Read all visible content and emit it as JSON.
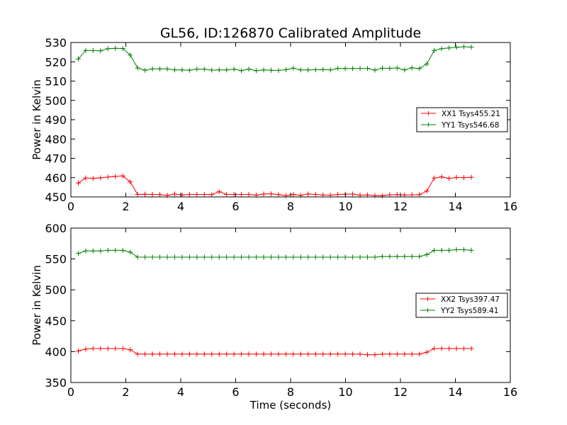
{
  "title": "GL56, ID:126870 Calibrated Amplitude",
  "chart_data": [
    {
      "type": "line",
      "title": "GL56, ID:126870 Calibrated Amplitude",
      "xlabel": "",
      "ylabel": "Power in Kelvin",
      "xlim": [
        0,
        16
      ],
      "ylim": [
        450,
        530
      ],
      "xticks": [
        0,
        2,
        4,
        6,
        8,
        10,
        12,
        14,
        16
      ],
      "yticks": [
        450,
        460,
        470,
        480,
        490,
        500,
        510,
        520,
        530
      ],
      "xtick_labels": [
        "0",
        "2",
        "4",
        "6",
        "8",
        "10",
        "12",
        "14",
        "16"
      ],
      "ytick_labels": [
        "450",
        "460",
        "470",
        "480",
        "490",
        "500",
        "510",
        "520",
        "530"
      ],
      "grid": false,
      "legend_position": "center-right",
      "x": [
        0.27,
        0.54,
        0.81,
        1.08,
        1.35,
        1.62,
        1.89,
        2.16,
        2.43,
        2.7,
        2.97,
        3.24,
        3.51,
        3.78,
        4.05,
        4.32,
        4.59,
        4.86,
        5.13,
        5.4,
        5.67,
        5.94,
        6.21,
        6.48,
        6.75,
        7.02,
        7.29,
        7.56,
        7.83,
        8.1,
        8.37,
        8.64,
        8.91,
        9.18,
        9.45,
        9.72,
        9.99,
        10.26,
        10.53,
        10.8,
        11.07,
        11.34,
        11.61,
        11.88,
        12.15,
        12.42,
        12.69,
        12.96,
        13.23,
        13.5,
        13.77,
        14.04,
        14.31,
        14.58
      ],
      "series": [
        {
          "name": "XX1 Tsys455.21",
          "color": "#ff0000",
          "values": [
            457.2,
            459.8,
            459.6,
            459.9,
            460.3,
            460.6,
            460.9,
            457.8,
            451.3,
            451.4,
            451.3,
            451.2,
            450.8,
            451.5,
            451.0,
            451.3,
            451.3,
            451.3,
            451.2,
            452.7,
            451.3,
            451.3,
            451.3,
            451.3,
            450.9,
            451.5,
            451.6,
            451.2,
            450.7,
            451.3,
            450.8,
            451.5,
            451.3,
            451.0,
            450.9,
            451.3,
            451.4,
            451.5,
            450.9,
            451.0,
            450.7,
            450.6,
            451.1,
            451.2,
            451.0,
            451.1,
            451.2,
            453.0,
            459.8,
            460.4,
            459.6,
            460.1,
            460.0,
            460.2
          ]
        },
        {
          "name": "YY1 Tsys546.68",
          "color": "#008000",
          "values": [
            521.5,
            525.9,
            525.8,
            525.7,
            526.8,
            527.0,
            526.9,
            523.5,
            516.8,
            515.6,
            516.3,
            516.3,
            516.3,
            515.8,
            515.8,
            515.6,
            516.2,
            516.2,
            515.7,
            515.8,
            515.8,
            516.2,
            515.4,
            516.2,
            515.4,
            515.8,
            515.6,
            515.5,
            515.9,
            516.7,
            515.8,
            515.8,
            515.9,
            516.0,
            515.8,
            516.6,
            516.5,
            516.5,
            516.6,
            516.6,
            515.7,
            516.7,
            516.6,
            516.8,
            515.8,
            516.9,
            516.5,
            518.9,
            525.9,
            526.8,
            527.2,
            527.5,
            527.8,
            527.6
          ]
        }
      ]
    },
    {
      "type": "line",
      "title": "",
      "xlabel": "Time (seconds)",
      "ylabel": "Power in Kelvin",
      "xlim": [
        0,
        16
      ],
      "ylim": [
        350,
        600
      ],
      "xticks": [
        0,
        2,
        4,
        6,
        8,
        10,
        12,
        14,
        16
      ],
      "yticks": [
        350,
        400,
        450,
        500,
        550,
        600
      ],
      "xtick_labels": [
        "0",
        "2",
        "4",
        "6",
        "8",
        "10",
        "12",
        "14",
        "16"
      ],
      "ytick_labels": [
        "350",
        "400",
        "450",
        "500",
        "550",
        "600"
      ],
      "grid": false,
      "legend_position": "center-right",
      "x": [
        0.27,
        0.54,
        0.81,
        1.08,
        1.35,
        1.62,
        1.89,
        2.16,
        2.43,
        2.7,
        2.97,
        3.24,
        3.51,
        3.78,
        4.05,
        4.32,
        4.59,
        4.86,
        5.13,
        5.4,
        5.67,
        5.94,
        6.21,
        6.48,
        6.75,
        7.02,
        7.29,
        7.56,
        7.83,
        8.1,
        8.37,
        8.64,
        8.91,
        9.18,
        9.45,
        9.72,
        9.99,
        10.26,
        10.53,
        10.8,
        11.07,
        11.34,
        11.61,
        11.88,
        12.15,
        12.42,
        12.69,
        12.96,
        13.23,
        13.5,
        13.77,
        14.04,
        14.31,
        14.58
      ],
      "series": [
        {
          "name": "XX2 Tsys397.47",
          "color": "#ff0000",
          "values": [
            401,
            404,
            405,
            405,
            405,
            405,
            405,
            403,
            396,
            396,
            396,
            396,
            396,
            396,
            396,
            396,
            396,
            396,
            396,
            396,
            396,
            396,
            396,
            396,
            396,
            396,
            396,
            396,
            396,
            396,
            396,
            396,
            396,
            396,
            396,
            396,
            396,
            396,
            396,
            395,
            395,
            396,
            396,
            396,
            396,
            396,
            396,
            399,
            405,
            405,
            405,
            405,
            405,
            405
          ]
        },
        {
          "name": "YY2 Tsys589.41",
          "color": "#008000",
          "values": [
            559,
            563,
            563,
            563,
            564,
            564,
            564,
            561,
            553,
            553,
            553,
            553,
            553,
            553,
            553,
            553,
            553,
            553,
            553,
            553,
            553,
            553,
            553,
            553,
            553,
            553,
            553,
            553,
            553,
            553,
            553,
            553,
            553,
            553,
            553,
            553,
            553,
            553,
            553,
            553,
            553,
            554,
            554,
            554,
            554,
            554,
            554,
            557,
            564,
            564,
            564,
            565,
            565,
            564
          ]
        }
      ]
    }
  ]
}
